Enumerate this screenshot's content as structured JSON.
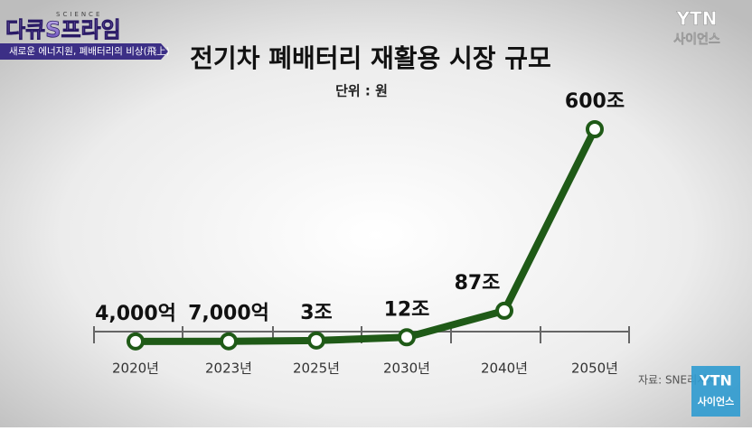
{
  "broadcast": {
    "program": "다큐S프라임",
    "program_tag": "SCIENCE",
    "episode": "새로운 에너지원, 폐배터리의 비상(飛上)",
    "channel": "YTN",
    "channel_sub": "사이언스",
    "source": "자료: SNE리서치"
  },
  "chart_data": {
    "type": "line",
    "title": "전기차 폐배터리 재활용 시장 규모",
    "subtitle": "단위 : 원",
    "categories": [
      "2020년",
      "2023년",
      "2025년",
      "2030년",
      "2040년",
      "2050년"
    ],
    "series": [
      {
        "color": "#1f5a17",
        "values": [
          0.4,
          0.7,
          3,
          12,
          87,
          600
        ],
        "value_labels": [
          "4,000억",
          "7,000억",
          "3조",
          "12조",
          "87조",
          "600조"
        ]
      }
    ]
  }
}
